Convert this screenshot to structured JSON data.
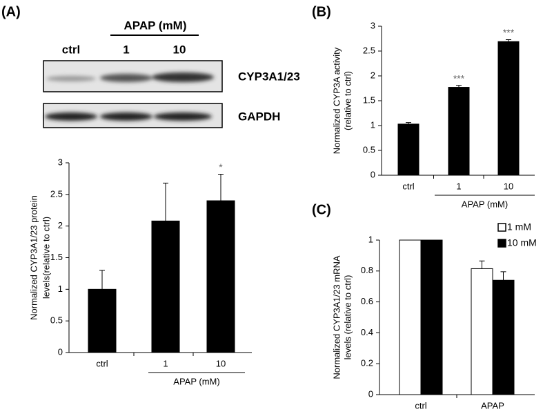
{
  "blot": {
    "panel": "(A)",
    "group": "APAP (mM)",
    "lanes": [
      "ctrl",
      "1",
      "10"
    ],
    "rows": [
      "CYP3A1/23",
      "GAPDH"
    ]
  },
  "chart_data": [
    {
      "type": "bar",
      "ylabel": [
        "Normalized CYP3A1/23 protein",
        "levels(relative to ctrl)"
      ],
      "categories": [
        "ctrl",
        "1",
        "10"
      ],
      "values": [
        1.0,
        2.08,
        2.4
      ],
      "errors": [
        0.3,
        0.6,
        0.42
      ],
      "color": "#000000",
      "annotations": [
        {
          "index": 2,
          "text": "*"
        }
      ],
      "group_label": "APAP (mM)",
      "ylim": [
        0,
        3
      ],
      "yticks": [
        0,
        0.5,
        1,
        1.5,
        2,
        2.5,
        3
      ]
    },
    {
      "type": "bar",
      "panel": "(B)",
      "ylabel": [
        "Normalized CYP3A activity",
        "(relative to ctrl)"
      ],
      "categories": [
        "ctrl",
        "1",
        "10"
      ],
      "values": [
        1.03,
        1.77,
        2.69
      ],
      "errors": [
        0.03,
        0.04,
        0.04
      ],
      "color": "#000000",
      "annotations": [
        {
          "index": 1,
          "text": "***"
        },
        {
          "index": 2,
          "text": "***"
        }
      ],
      "group_label": "APAP (mM)",
      "ylim": [
        0,
        3
      ],
      "yticks": [
        0,
        0.5,
        1,
        1.5,
        2,
        2.5,
        3
      ]
    },
    {
      "type": "grouped-bar",
      "panel": "(C)",
      "ylabel": [
        "Normalized CYP3A1/23 mRNA",
        "levels (relative to ctrl)"
      ],
      "categories": [
        "ctrl",
        "APAP"
      ],
      "series": [
        {
          "name": "1 mM",
          "color": "#ffffff",
          "values": [
            1,
            0.815
          ],
          "errors": [
            null,
            0.05
          ]
        },
        {
          "name": "10 mM",
          "color": "#000000",
          "values": [
            1,
            0.74
          ],
          "errors": [
            null,
            0.055
          ]
        }
      ],
      "ylim": [
        0,
        1
      ],
      "yticks": [
        0,
        {
          "value": 0.2,
          "label": "0.2"
        },
        {
          "value": 0.4,
          "label": "0.4"
        },
        {
          "value": 0.6,
          "label": "0.6"
        },
        {
          "value": 0.8,
          "label": "0.8"
        },
        1
      ]
    }
  ]
}
